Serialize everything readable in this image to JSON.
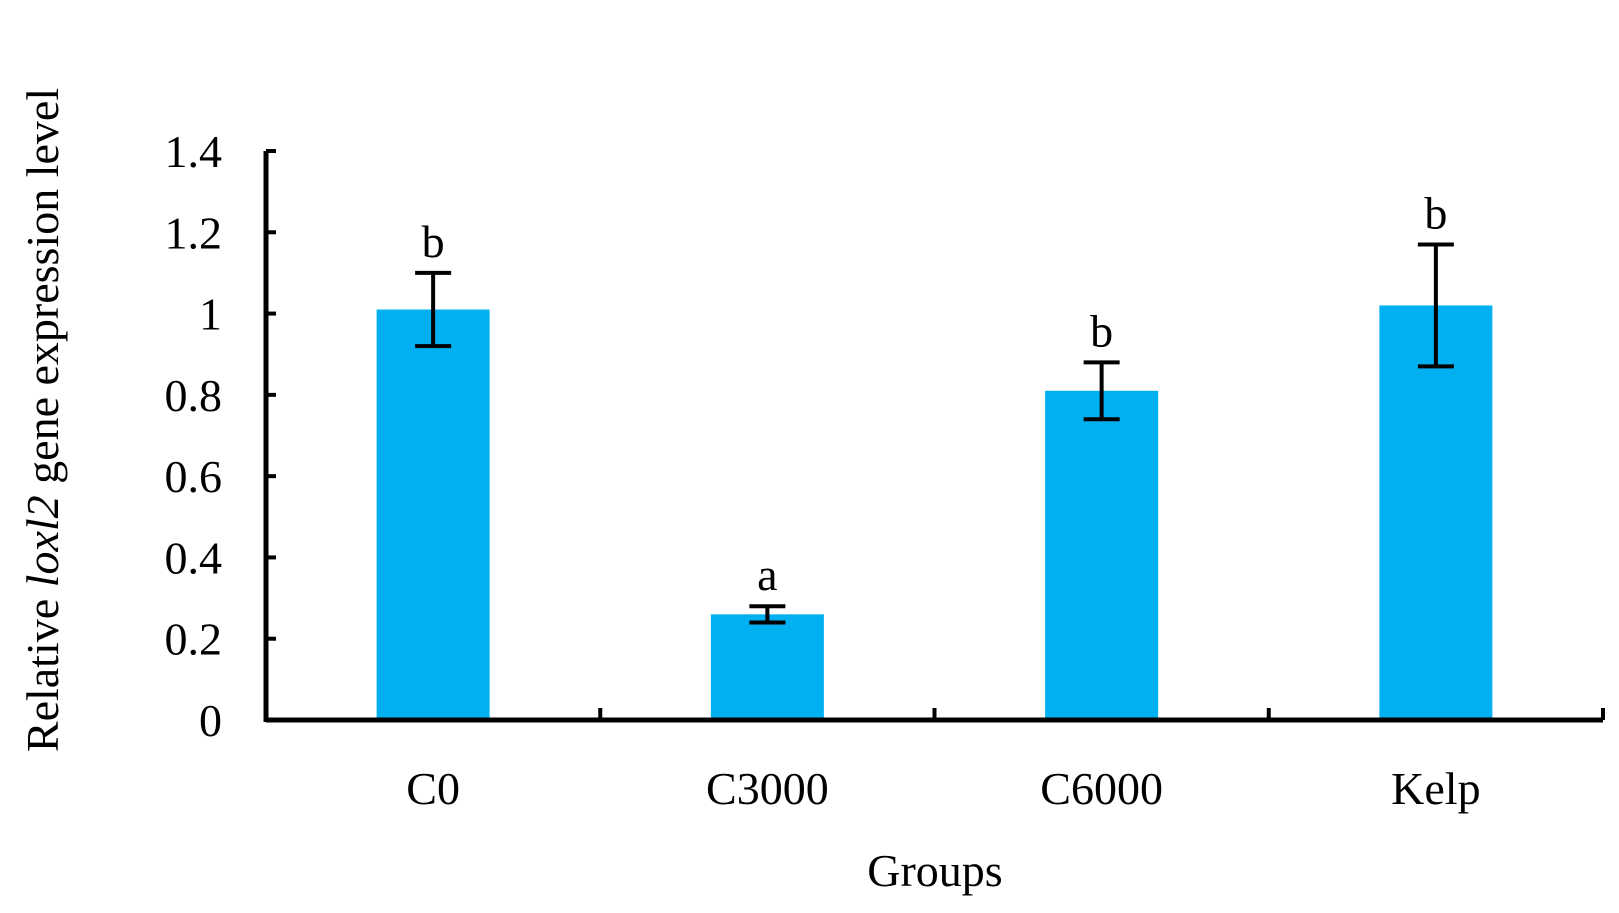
{
  "chart_data": {
    "type": "bar",
    "title": "",
    "xlabel": "Groups",
    "ylabel": {
      "prefix": "Relative ",
      "gene": "loxl2",
      "suffix": " gene expression level"
    },
    "ylim": [
      0,
      1.4
    ],
    "yticks": [
      "0",
      "0.2",
      "0.4",
      "0.6",
      "0.8",
      "1",
      "1.2",
      "1.4"
    ],
    "categories": [
      "C0",
      "C3000",
      "C6000",
      "Kelp"
    ],
    "values": [
      1.01,
      0.26,
      0.81,
      1.02
    ],
    "error_upper": [
      1.1,
      0.28,
      0.88,
      1.17
    ],
    "error_lower": [
      0.92,
      0.24,
      0.74,
      0.87
    ],
    "significance": [
      "b",
      "a",
      "b",
      "b"
    ],
    "bar_color": "#00B0F0",
    "grid": false,
    "legend": "none"
  }
}
